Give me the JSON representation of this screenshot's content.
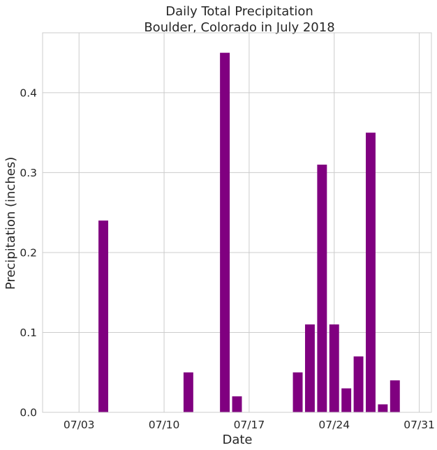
{
  "chart_data": {
    "type": "bar",
    "title": "Daily Total Precipitation",
    "subtitle": "Boulder, Colorado in July 2018",
    "xlabel": "Date",
    "ylabel": "Precipitation (inches)",
    "x_axis": {
      "type": "date",
      "range": [
        "2018-06-30",
        "2018-08-01"
      ],
      "ticks": [
        {
          "date": "2018-07-03",
          "label": "07/03"
        },
        {
          "date": "2018-07-10",
          "label": "07/10"
        },
        {
          "date": "2018-07-17",
          "label": "07/17"
        },
        {
          "date": "2018-07-24",
          "label": "07/24"
        },
        {
          "date": "2018-07-31",
          "label": "07/31"
        }
      ]
    },
    "y_axis": {
      "range": [
        0,
        0.475
      ],
      "ticks": [
        {
          "value": 0.0,
          "label": "0.0"
        },
        {
          "value": 0.1,
          "label": "0.1"
        },
        {
          "value": 0.2,
          "label": "0.2"
        },
        {
          "value": 0.3,
          "label": "0.3"
        },
        {
          "value": 0.4,
          "label": "0.4"
        }
      ]
    },
    "grid": true,
    "bar_color": "#800080",
    "points": [
      {
        "date": "2018-07-05",
        "value": 0.24
      },
      {
        "date": "2018-07-12",
        "value": 0.05
      },
      {
        "date": "2018-07-15",
        "value": 0.45
      },
      {
        "date": "2018-07-16",
        "value": 0.02
      },
      {
        "date": "2018-07-21",
        "value": 0.05
      },
      {
        "date": "2018-07-22",
        "value": 0.11
      },
      {
        "date": "2018-07-23",
        "value": 0.31
      },
      {
        "date": "2018-07-24",
        "value": 0.11
      },
      {
        "date": "2018-07-25",
        "value": 0.03
      },
      {
        "date": "2018-07-26",
        "value": 0.07
      },
      {
        "date": "2018-07-27",
        "value": 0.35
      },
      {
        "date": "2018-07-28",
        "value": 0.01
      },
      {
        "date": "2018-07-29",
        "value": 0.04
      }
    ]
  }
}
